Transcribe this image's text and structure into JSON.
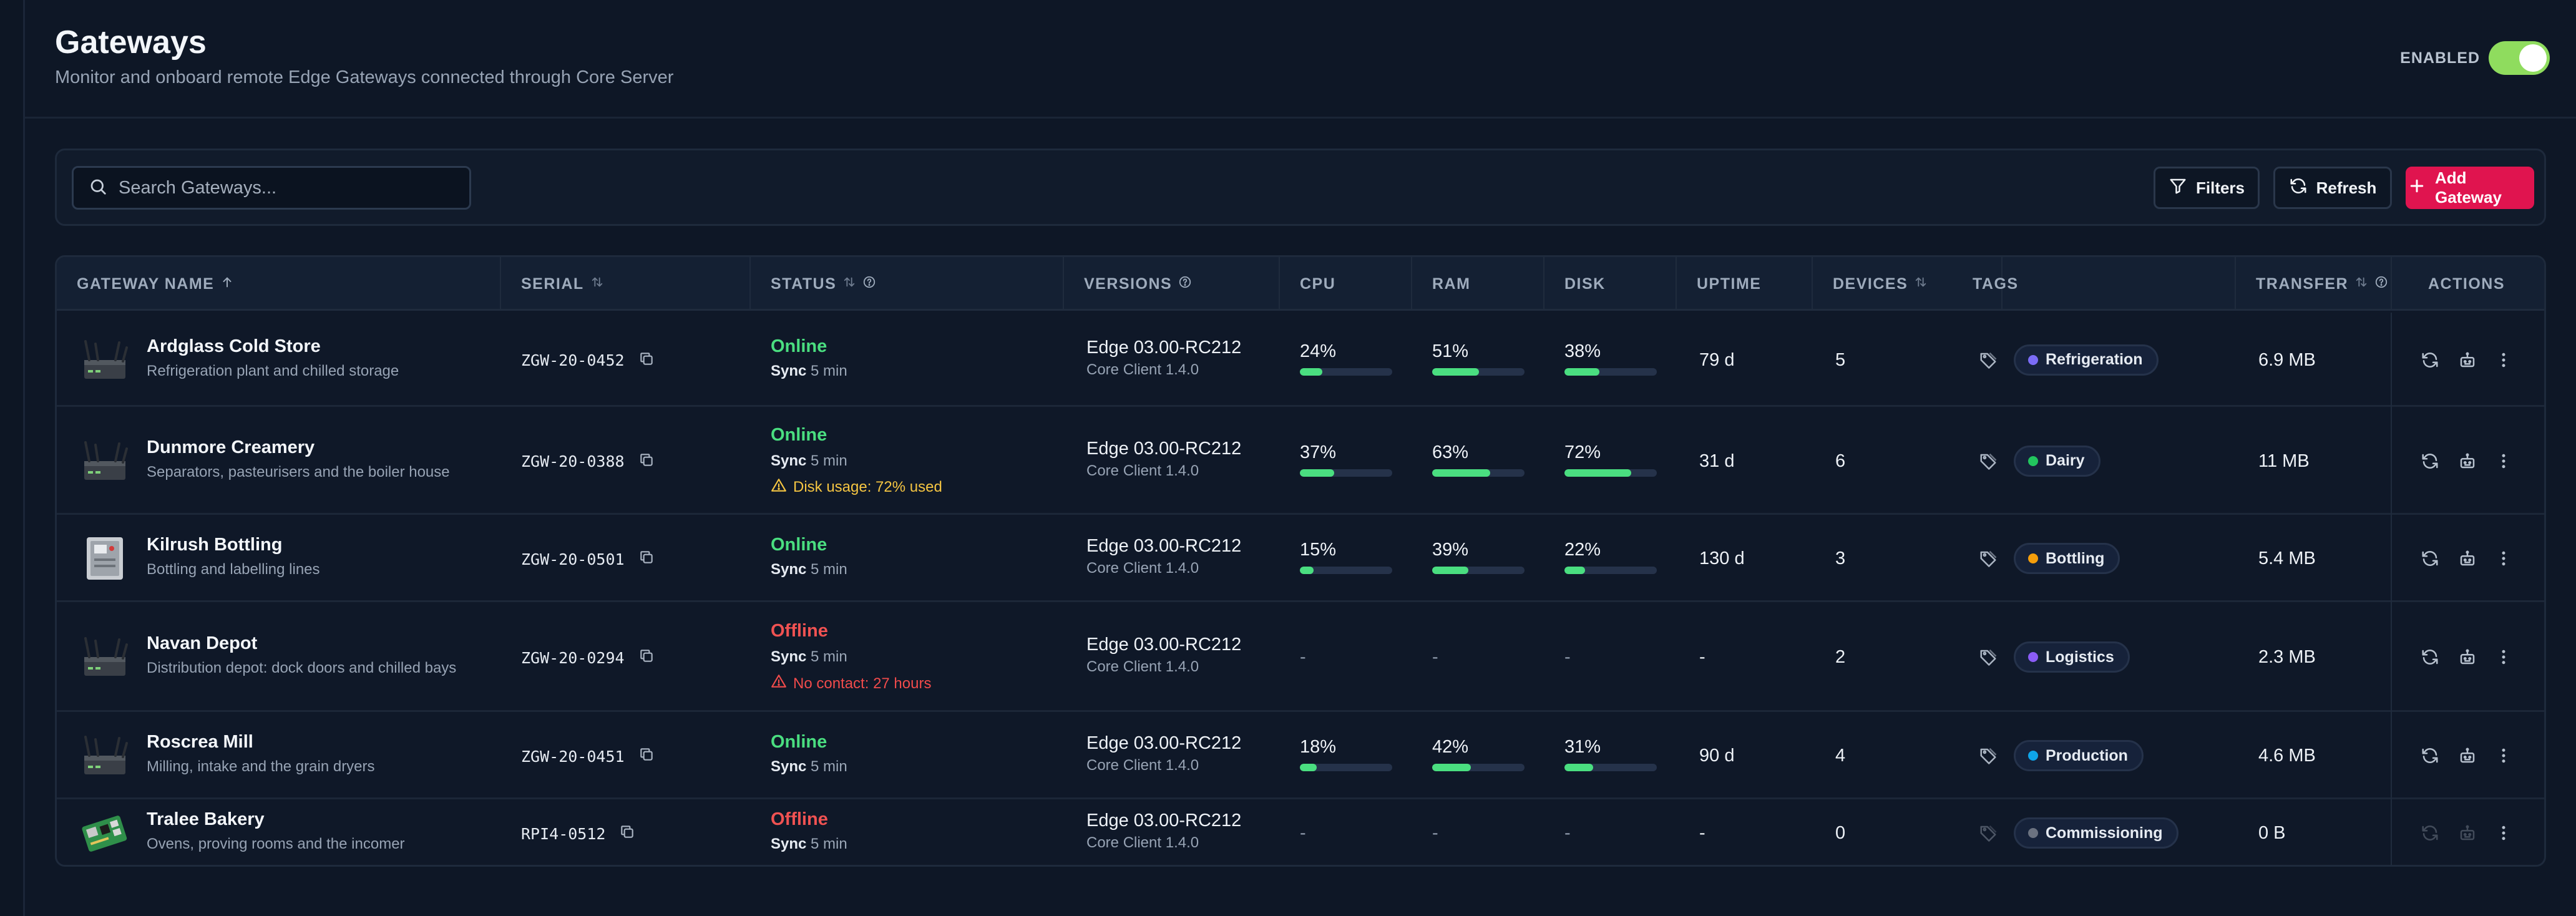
{
  "header": {
    "title": "Gateways",
    "subtitle": "Monitor and onboard remote Edge Gateways connected through Core Server",
    "enabled_label": "ENABLED",
    "enabled": true
  },
  "toolbar": {
    "search_placeholder": "Search Gateways...",
    "filters_label": "Filters",
    "refresh_label": "Refresh",
    "add_label": "Add Gateway"
  },
  "table": {
    "columns": {
      "name": "GATEWAY NAME",
      "serial": "SERIAL",
      "status": "STATUS",
      "versions": "VERSIONS",
      "cpu": "CPU",
      "ram": "RAM",
      "disk": "DISK",
      "uptime": "UPTIME",
      "devices": "DEVICES",
      "tags": "TAGS",
      "transfer": "TRANSFER",
      "actions": "ACTIONS"
    },
    "rows": [
      {
        "name": "Ardglass Cold Store",
        "description": "Refrigeration plant and chilled storage",
        "image": "router-icon",
        "serial": "ZGW-20-0452",
        "status": "Online",
        "sync_label": "Sync",
        "sync": "5 min",
        "warning": "",
        "version": "Edge 03.00-RC212",
        "client": "Core Client 1.4.0",
        "cpu": "24%",
        "cpu_frac": 0.24,
        "ram": "51%",
        "ram_frac": 0.51,
        "disk": "38%",
        "disk_frac": 0.38,
        "uptime": "79 d",
        "devices": "5",
        "tag": "Refrigeration",
        "tag_color": "#7b6cf6",
        "transfer": "6.9 MB",
        "actions_enabled": true
      },
      {
        "name": "Dunmore Creamery",
        "description": "Separators, pasteurisers and the boiler house",
        "image": "router-icon",
        "serial": "ZGW-20-0388",
        "status": "Online",
        "sync_label": "Sync",
        "sync": "5 min",
        "warning": "Disk usage: 72% used",
        "warning_level": "yellow",
        "version": "Edge 03.00-RC212",
        "client": "Core Client 1.4.0",
        "cpu": "37%",
        "cpu_frac": 0.37,
        "ram": "63%",
        "ram_frac": 0.63,
        "disk": "72%",
        "disk_frac": 0.72,
        "uptime": "31 d",
        "devices": "6",
        "tag": "Dairy",
        "tag_color": "#22c55e",
        "transfer": "11 MB",
        "actions_enabled": true
      },
      {
        "name": "Kilrush Bottling",
        "description": "Bottling and labelling lines",
        "image": "control-box-icon",
        "serial": "ZGW-20-0501",
        "status": "Online",
        "sync_label": "Sync",
        "sync": "5 min",
        "warning": "",
        "version": "Edge 03.00-RC212",
        "client": "Core Client 1.4.0",
        "cpu": "15%",
        "cpu_frac": 0.15,
        "ram": "39%",
        "ram_frac": 0.39,
        "disk": "22%",
        "disk_frac": 0.22,
        "uptime": "130 d",
        "devices": "3",
        "tag": "Bottling",
        "tag_color": "#f59e0b",
        "transfer": "5.4 MB",
        "actions_enabled": true
      },
      {
        "name": "Navan Depot",
        "description": "Distribution depot: dock doors and chilled bays",
        "image": "router-icon",
        "serial": "ZGW-20-0294",
        "status": "Offline",
        "sync_label": "Sync",
        "sync": "5 min",
        "warning": "No contact: 27 hours",
        "warning_level": "red",
        "version": "Edge 03.00-RC212",
        "client": "Core Client 1.4.0",
        "cpu": "-",
        "ram": "-",
        "disk": "-",
        "uptime": "-",
        "devices": "2",
        "tag": "Logistics",
        "tag_color": "#8b5cf6",
        "transfer": "2.3 MB",
        "actions_enabled": true
      },
      {
        "name": "Roscrea Mill",
        "description": "Milling, intake and the grain dryers",
        "image": "router-icon",
        "serial": "ZGW-20-0451",
        "status": "Online",
        "sync_label": "Sync",
        "sync": "5 min",
        "warning": "",
        "version": "Edge 03.00-RC212",
        "client": "Core Client 1.4.0",
        "cpu": "18%",
        "cpu_frac": 0.18,
        "ram": "42%",
        "ram_frac": 0.42,
        "disk": "31%",
        "disk_frac": 0.31,
        "uptime": "90 d",
        "devices": "4",
        "tag": "Production",
        "tag_color": "#0ea5e9",
        "transfer": "4.6 MB",
        "actions_enabled": true
      },
      {
        "name": "Tralee Bakery",
        "description": "Ovens, proving rooms and the incomer",
        "image": "raspberry-pi-board-icon",
        "serial": "RPI4-0512",
        "status": "Offline",
        "sync_label": "Sync",
        "sync": "5 min",
        "warning": "",
        "version": "Edge 03.00-RC212",
        "client": "Core Client 1.4.0",
        "cpu": "-",
        "ram": "-",
        "disk": "-",
        "uptime": "-",
        "devices": "0",
        "tag": "Commissioning",
        "tag_color": "#6b7280",
        "transfer": "0 B",
        "actions_enabled": false
      }
    ]
  },
  "colors": {
    "online": "#4ade80",
    "offline": "#f05252",
    "accent": "#e0144f",
    "toggle": "#8fdc5e"
  }
}
